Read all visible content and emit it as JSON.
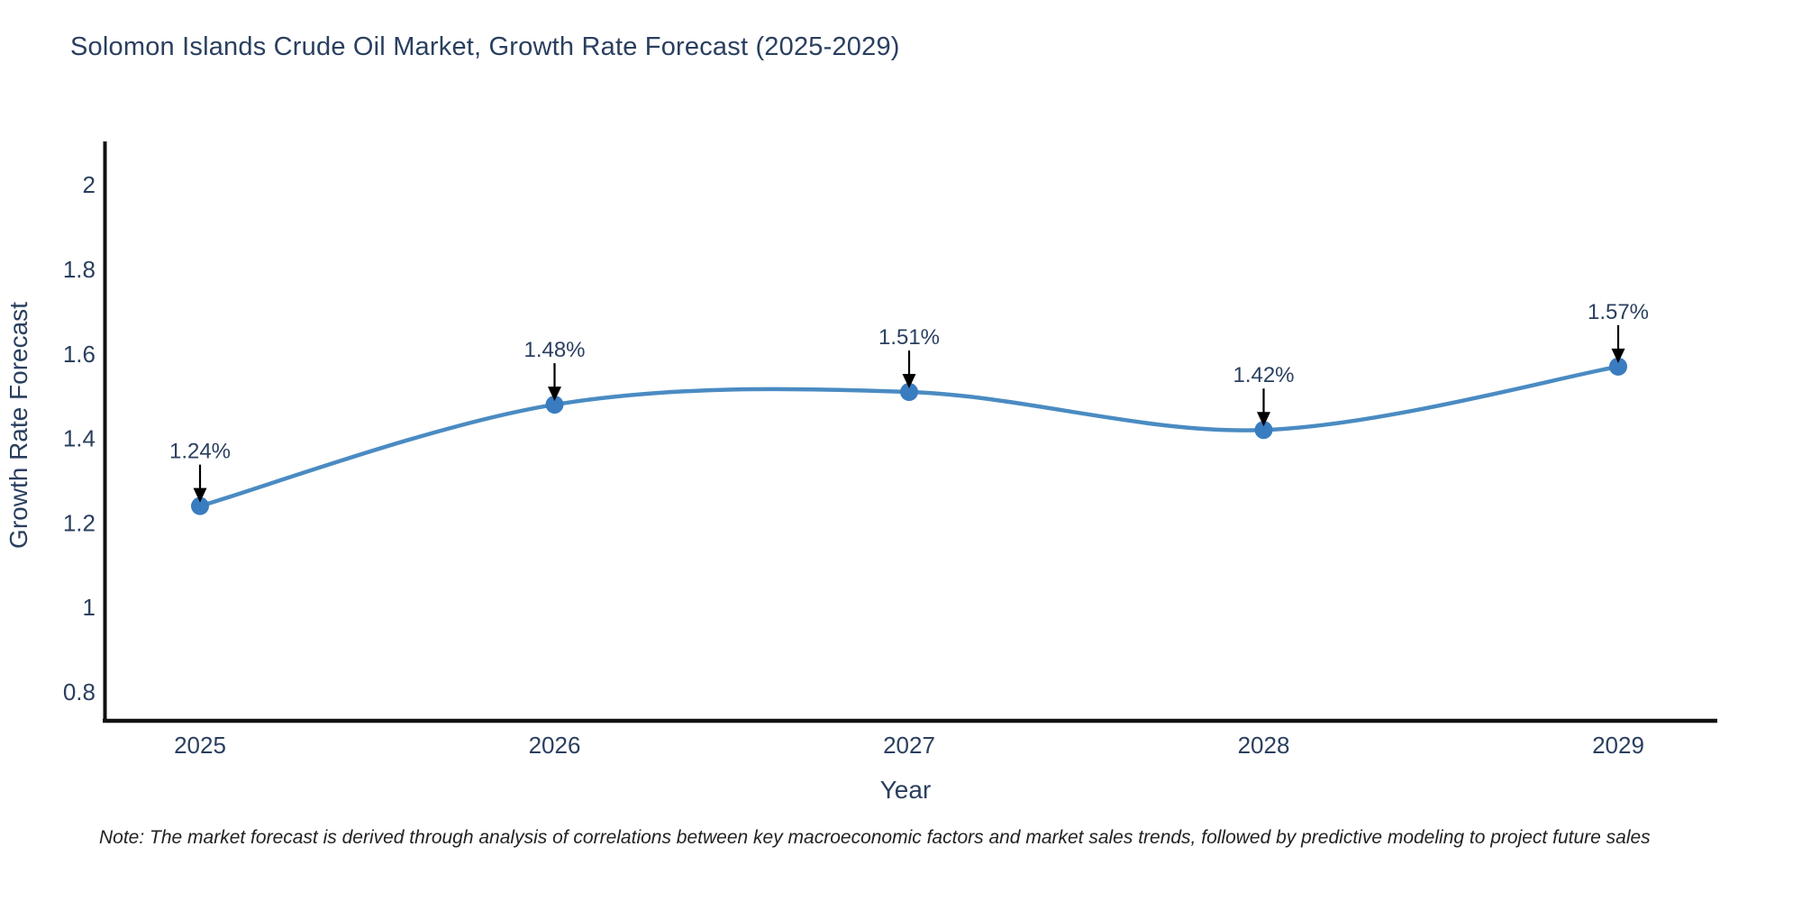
{
  "title": "Solomon Islands Crude Oil Market, Growth Rate Forecast (2025-2029)",
  "note": "Note: The market forecast is derived through analysis of correlations between key macroeconomic factors and market sales trends, followed by predictive modeling to project future sales",
  "chart_data": {
    "type": "line",
    "line_shape": "spline",
    "title": "Solomon Islands Crude Oil Market, Growth Rate Forecast (2025-2029)",
    "xlabel": "Year",
    "ylabel": "Growth Rate Forecast",
    "x": [
      "2025",
      "2026",
      "2027",
      "2028",
      "2029"
    ],
    "series": [
      {
        "name": "Growth Rate Forecast",
        "values": [
          1.24,
          1.48,
          1.51,
          1.42,
          1.57
        ],
        "point_labels": [
          "1.24%",
          "1.48%",
          "1.51%",
          "1.42%",
          "1.57%"
        ]
      }
    ],
    "yticks": [
      2,
      1.8,
      1.6,
      1.4,
      1.2,
      1,
      0.8
    ],
    "ytick_labels": [
      "2",
      "1.8",
      "1.6",
      "1.4",
      "1.2",
      "1",
      "0.8"
    ],
    "ylim": [
      0.73,
      2.08
    ],
    "grid": false,
    "legend": false,
    "annotations_style": "value-label-with-down-arrow",
    "colors": {
      "line": "#4a8bc2",
      "marker": "#3a7cc0",
      "axis": "#111111",
      "tick_text": "#2a3f5f",
      "annotation_text": "#2a3f5f",
      "annotation_arrow": "#000000",
      "title_text": "#2a3f5f"
    }
  }
}
